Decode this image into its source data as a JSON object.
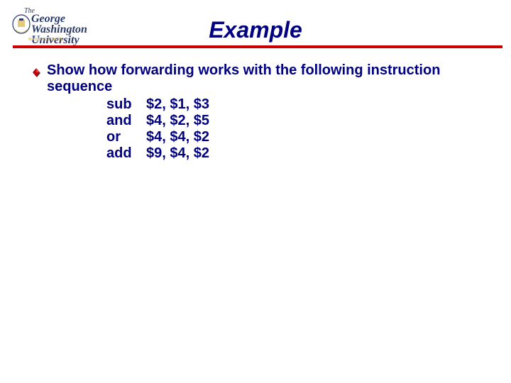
{
  "logo": {
    "the": "The",
    "main": "George\nWashington\nUniversity",
    "tag": "WASHINGTON DC",
    "text_color": "#2a3a6a",
    "accent_color": "#e0c060"
  },
  "title": {
    "text": "Example",
    "color": "#000080",
    "fontsize": 32
  },
  "rule_color": "#cc0000",
  "body": {
    "color": "#000080",
    "fontsize": 20,
    "bullet_fill": "#c00000",
    "bullet_shadow": "#404040",
    "lead": "Show how forwarding works with the following instruction sequence",
    "instructions": [
      {
        "op": "sub",
        "args": "$2, $1, $3"
      },
      {
        "op": "and",
        "args": "$4, $2, $5"
      },
      {
        "op": "or",
        "args": "$4, $4, $2"
      },
      {
        "op": "add",
        "args": "$9, $4, $2"
      }
    ]
  }
}
